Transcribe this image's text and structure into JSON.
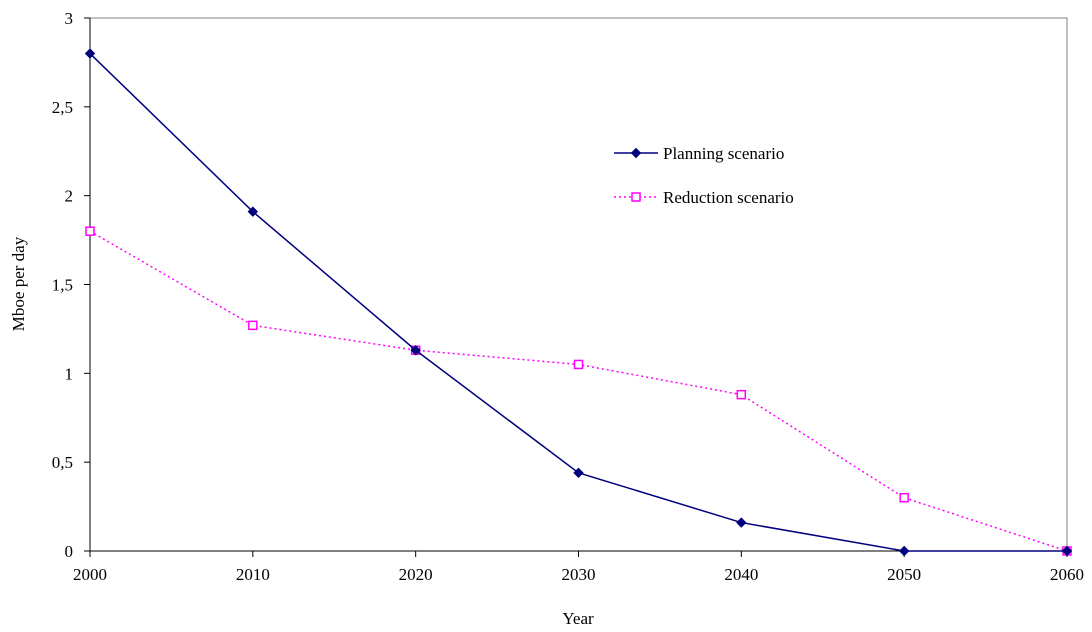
{
  "chart_data": {
    "type": "line",
    "xlabel": "Year",
    "ylabel": "Mboe per day",
    "x": [
      2000,
      2010,
      2020,
      2030,
      2040,
      2050,
      2060
    ],
    "x_tick_labels": [
      "2000",
      "2010",
      "2020",
      "2030",
      "2040",
      "2050",
      "2060"
    ],
    "xlim": [
      2000,
      2060
    ],
    "ylim": [
      0,
      3
    ],
    "y_ticks": [
      0,
      0.5,
      1,
      1.5,
      2,
      2.5,
      3
    ],
    "y_tick_labels": [
      "0",
      "0,5",
      "1",
      "1,5",
      "2",
      "2,5",
      "3"
    ],
    "grid": false,
    "legend_position": "right",
    "series": [
      {
        "name": "Planning scenario",
        "values": [
          2.8,
          1.91,
          1.13,
          0.44,
          0.16,
          0.0,
          0.0
        ],
        "color": "#00007f",
        "line_style": "solid",
        "marker": "diamond"
      },
      {
        "name": "Reduction scenario",
        "values": [
          1.8,
          1.27,
          1.13,
          1.05,
          0.88,
          0.3,
          0.0
        ],
        "color": "#ff00ff",
        "line_style": "dotted",
        "marker": "open-square"
      }
    ]
  }
}
